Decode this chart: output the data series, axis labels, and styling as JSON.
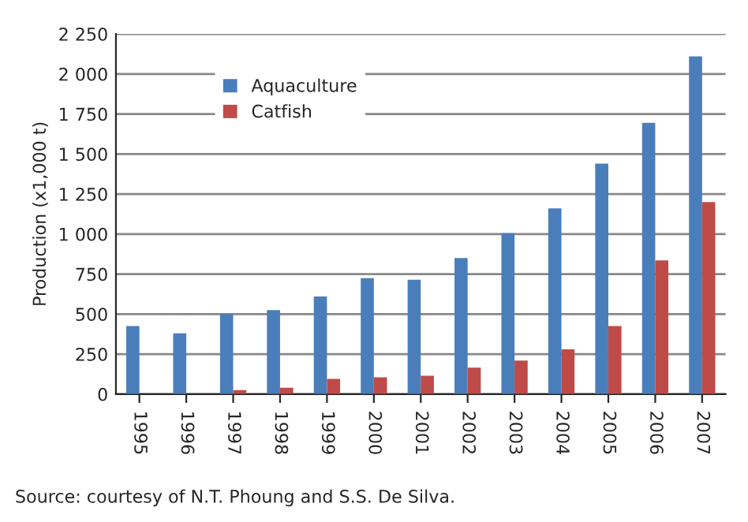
{
  "chart_data": {
    "type": "bar",
    "ylabel": "Production (x1,000 t)",
    "categories": [
      "1995",
      "1996",
      "1997",
      "1998",
      "1999",
      "2000",
      "2001",
      "2002",
      "2003",
      "2004",
      "2005",
      "2006",
      "2007"
    ],
    "series": [
      {
        "name": "Aquaculture",
        "color": "#4a7ebb",
        "values": [
          425,
          380,
          500,
          525,
          610,
          725,
          715,
          850,
          1005,
          1160,
          1440,
          1695,
          2110
        ]
      },
      {
        "name": "Catfish",
        "color": "#be4b48",
        "values": [
          null,
          null,
          25,
          40,
          95,
          105,
          115,
          165,
          210,
          280,
          425,
          835,
          1200
        ]
      }
    ],
    "ylim": [
      0,
      2250
    ],
    "yticks": [
      0,
      250,
      500,
      750,
      {
        "value": 1000,
        "label": "1 000"
      },
      {
        "value": 1250,
        "label": "1 250"
      },
      {
        "value": 1500,
        "label": "1 500"
      },
      {
        "value": 1750,
        "label": "1 750"
      },
      {
        "value": 2000,
        "label": "2 000"
      },
      {
        "value": 2250,
        "label": "2 250"
      }
    ],
    "grid": "y",
    "legend": "top left",
    "annotations": [
      "Source: courtesy of N.T. Phoung and S.S. De Silva."
    ]
  }
}
